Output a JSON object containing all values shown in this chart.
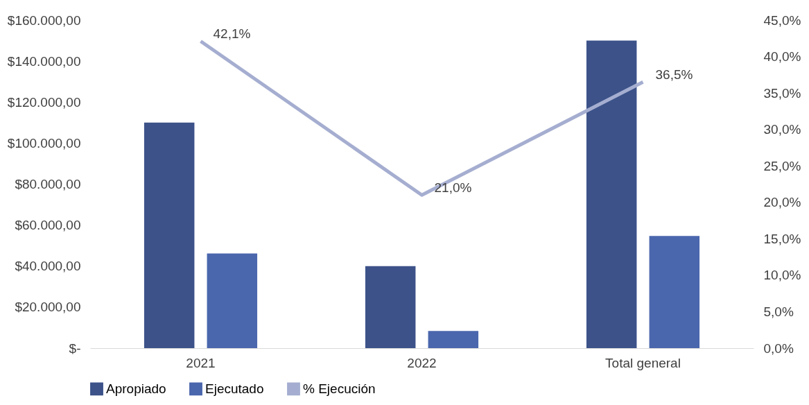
{
  "chart_data": {
    "type": "bar",
    "categories": [
      "2021",
      "2022",
      "Total general"
    ],
    "series": [
      {
        "name": "Apropiado",
        "color": "#3c5289",
        "values": [
          110000,
          40000,
          150000
        ]
      },
      {
        "name": "Ejecutado",
        "color": "#4a66ad",
        "values": [
          46200,
          8400,
          54700
        ]
      },
      {
        "name": "% Ejecución",
        "type": "line",
        "axis": "y2",
        "color": "#a5aed0",
        "values": [
          42.1,
          21.0,
          36.5
        ],
        "value_labels": [
          "42,1%",
          "21,0%",
          "36,5%"
        ]
      }
    ],
    "ylim": [
      0,
      160000
    ],
    "yticks": [
      {
        "value": 0,
        "label": "$-"
      },
      {
        "value": 20000,
        "label": "$20.000,00"
      },
      {
        "value": 40000,
        "label": "$40.000,00"
      },
      {
        "value": 60000,
        "label": "$60.000,00"
      },
      {
        "value": 80000,
        "label": "$80.000,00"
      },
      {
        "value": 100000,
        "label": "$100.000,00"
      },
      {
        "value": 120000,
        "label": "$120.000,00"
      },
      {
        "value": 140000,
        "label": "$140.000,00"
      },
      {
        "value": 160000,
        "label": "$160.000,00"
      }
    ],
    "y2lim": [
      0,
      45
    ],
    "y2ticks": [
      {
        "value": 0,
        "label": "0,0%"
      },
      {
        "value": 5,
        "label": "5,0%"
      },
      {
        "value": 10,
        "label": "10,0%"
      },
      {
        "value": 15,
        "label": "15,0%"
      },
      {
        "value": 20,
        "label": "20,0%"
      },
      {
        "value": 25,
        "label": "25,0%"
      },
      {
        "value": 30,
        "label": "30,0%"
      },
      {
        "value": 35,
        "label": "35,0%"
      },
      {
        "value": 40,
        "label": "40,0%"
      },
      {
        "value": 45,
        "label": "45,0%"
      }
    ],
    "legend": "bottom",
    "grid": false
  }
}
